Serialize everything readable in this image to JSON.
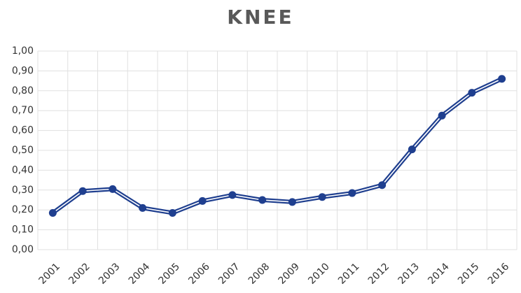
{
  "chart_data": {
    "type": "line",
    "title": "KNEE",
    "categories": [
      "2001",
      "2002",
      "2003",
      "2004",
      "2005",
      "2006",
      "2007",
      "2008",
      "2009",
      "2010",
      "2011",
      "2012",
      "2013",
      "2014",
      "2015",
      "2016"
    ],
    "series": [
      {
        "name": "KNEE",
        "color": "#1f3f8f",
        "values": [
          0.185,
          0.295,
          0.305,
          0.21,
          0.185,
          0.245,
          0.275,
          0.25,
          0.24,
          0.265,
          0.285,
          0.325,
          0.505,
          0.675,
          0.79,
          0.86
        ]
      }
    ],
    "ylim": [
      0,
      1
    ],
    "yticks": [
      {
        "value": 0,
        "label": "0,00"
      },
      {
        "value": 0.1,
        "label": "0,10"
      },
      {
        "value": 0.2,
        "label": "0,20"
      },
      {
        "value": 0.3,
        "label": "0,30"
      },
      {
        "value": 0.4,
        "label": "0,40"
      },
      {
        "value": 0.5,
        "label": "0,50"
      },
      {
        "value": 0.6,
        "label": "0,60"
      },
      {
        "value": 0.7,
        "label": "0,70"
      },
      {
        "value": 0.8,
        "label": "0,80"
      },
      {
        "value": 0.9,
        "label": "0,90"
      },
      {
        "value": 1,
        "label": "1,00"
      }
    ],
    "grid": true
  }
}
